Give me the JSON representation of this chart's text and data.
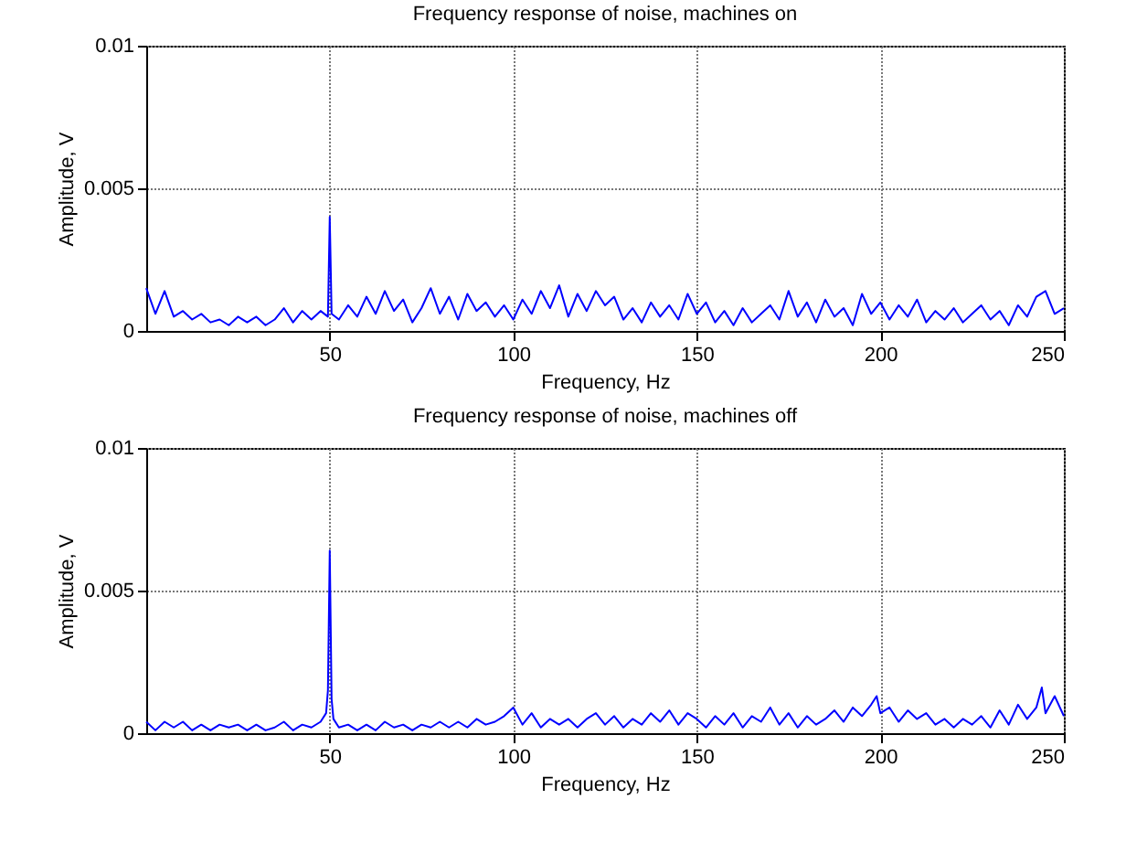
{
  "chart_data": [
    {
      "type": "line",
      "title": "Frequency response of noise, machines on",
      "xlabel": "Frequency, Hz",
      "ylabel": "Amplitude, V",
      "xlim": [
        0,
        250
      ],
      "ylim": [
        0,
        0.01
      ],
      "xticks": [
        50,
        100,
        150,
        200,
        250
      ],
      "yticks": [
        0,
        0.005,
        0.01
      ],
      "grid": true,
      "x": [
        0,
        2.5,
        5,
        7.5,
        10,
        12.5,
        15,
        17.5,
        20,
        22.5,
        25,
        27.5,
        30,
        32.5,
        35,
        37.5,
        40,
        42.5,
        45,
        47.5,
        49.5,
        50,
        50.5,
        52.5,
        55,
        57.5,
        60,
        62.5,
        65,
        67.5,
        70,
        72.5,
        75,
        77.5,
        80,
        82.5,
        85,
        87.5,
        90,
        92.5,
        95,
        97.5,
        100,
        102.5,
        105,
        107.5,
        110,
        112.5,
        115,
        117.5,
        120,
        122.5,
        125,
        127.5,
        130,
        132.5,
        135,
        137.5,
        140,
        142.5,
        145,
        147.5,
        150,
        152.5,
        155,
        157.5,
        160,
        162.5,
        165,
        167.5,
        170,
        172.5,
        175,
        177.5,
        180,
        182.5,
        185,
        187.5,
        190,
        192.5,
        195,
        197.5,
        200,
        202.5,
        205,
        207.5,
        210,
        212.5,
        215,
        217.5,
        220,
        222.5,
        225,
        227.5,
        230,
        232.5,
        235,
        237.5,
        240,
        242.5,
        245,
        247.5,
        250
      ],
      "series": [
        {
          "color": "#0000ff",
          "values": [
            0.0015,
            0.0006,
            0.0014,
            0.0005,
            0.0007,
            0.0004,
            0.0006,
            0.0003,
            0.0004,
            0.0002,
            0.0005,
            0.0003,
            0.0005,
            0.0002,
            0.0004,
            0.0008,
            0.0003,
            0.0007,
            0.0004,
            0.0007,
            0.0005,
            0.004,
            0.0006,
            0.0004,
            0.0009,
            0.0005,
            0.0012,
            0.0006,
            0.0014,
            0.0007,
            0.0011,
            0.0003,
            0.0008,
            0.0015,
            0.0006,
            0.0012,
            0.0004,
            0.0013,
            0.0007,
            0.001,
            0.0005,
            0.0009,
            0.0004,
            0.0011,
            0.0006,
            0.0014,
            0.0008,
            0.0016,
            0.0005,
            0.0013,
            0.0007,
            0.0014,
            0.0009,
            0.0012,
            0.0004,
            0.0008,
            0.0003,
            0.001,
            0.0005,
            0.0009,
            0.0004,
            0.0013,
            0.0006,
            0.001,
            0.0003,
            0.0007,
            0.0002,
            0.0008,
            0.0003,
            0.0006,
            0.0009,
            0.0004,
            0.0014,
            0.0005,
            0.001,
            0.0003,
            0.0011,
            0.0005,
            0.0008,
            0.0002,
            0.0013,
            0.0006,
            0.001,
            0.0004,
            0.0009,
            0.0005,
            0.0011,
            0.0003,
            0.0007,
            0.0004,
            0.0008,
            0.0003,
            0.0006,
            0.0009,
            0.0004,
            0.0007,
            0.0002,
            0.0009,
            0.0005,
            0.0012,
            0.0014,
            0.0006,
            0.0008
          ]
        }
      ]
    },
    {
      "type": "line",
      "title": "Frequency response of noise, machines off",
      "xlabel": "Frequency, Hz",
      "ylabel": "Amplitude, V",
      "xlim": [
        0,
        250
      ],
      "ylim": [
        0,
        0.01
      ],
      "xticks": [
        50,
        100,
        150,
        200,
        250
      ],
      "yticks": [
        0,
        0.005,
        0.01
      ],
      "grid": true,
      "x": [
        0,
        2.5,
        5,
        7.5,
        10,
        12.5,
        15,
        17.5,
        20,
        22.5,
        25,
        27.5,
        30,
        32.5,
        35,
        37.5,
        40,
        42.5,
        45,
        47.5,
        49,
        49.5,
        50,
        50.5,
        51,
        52.5,
        55,
        57.5,
        60,
        62.5,
        65,
        67.5,
        70,
        72.5,
        75,
        77.5,
        80,
        82.5,
        85,
        87.5,
        90,
        92.5,
        95,
        97.5,
        100,
        102.5,
        105,
        107.5,
        110,
        112.5,
        115,
        117.5,
        120,
        122.5,
        125,
        127.5,
        130,
        132.5,
        135,
        137.5,
        140,
        142.5,
        145,
        147.5,
        150,
        152.5,
        155,
        157.5,
        160,
        162.5,
        165,
        167.5,
        170,
        172.5,
        175,
        177.5,
        180,
        182.5,
        185,
        187.5,
        190,
        192.5,
        195,
        197.5,
        199,
        200,
        202.5,
        205,
        207.5,
        210,
        212.5,
        215,
        217.5,
        220,
        222.5,
        225,
        227.5,
        230,
        232.5,
        235,
        237.5,
        240,
        242.5,
        244,
        245,
        247.5,
        250
      ],
      "series": [
        {
          "color": "#0000ff",
          "values": [
            0.0004,
            0.0001,
            0.0004,
            0.0002,
            0.0004,
            0.0001,
            0.0003,
            0.0001,
            0.0003,
            0.0002,
            0.0003,
            0.0001,
            0.0003,
            0.0001,
            0.0002,
            0.0004,
            0.0001,
            0.0003,
            0.0002,
            0.0004,
            0.0007,
            0.0015,
            0.0064,
            0.0012,
            0.0005,
            0.0002,
            0.0003,
            0.0001,
            0.0003,
            0.0001,
            0.0004,
            0.0002,
            0.0003,
            0.0001,
            0.0003,
            0.0002,
            0.0004,
            0.0002,
            0.0004,
            0.0002,
            0.0005,
            0.0003,
            0.0004,
            0.0006,
            0.0009,
            0.0003,
            0.0007,
            0.0002,
            0.0005,
            0.0003,
            0.0005,
            0.0002,
            0.0005,
            0.0007,
            0.0003,
            0.0006,
            0.0002,
            0.0005,
            0.0003,
            0.0007,
            0.0004,
            0.0008,
            0.0003,
            0.0007,
            0.0005,
            0.0002,
            0.0006,
            0.0003,
            0.0007,
            0.0002,
            0.0006,
            0.0004,
            0.0009,
            0.0003,
            0.0007,
            0.0002,
            0.0006,
            0.0003,
            0.0005,
            0.0008,
            0.0004,
            0.0009,
            0.0006,
            0.001,
            0.0013,
            0.0007,
            0.0009,
            0.0004,
            0.0008,
            0.0005,
            0.0007,
            0.0003,
            0.0005,
            0.0002,
            0.0005,
            0.0003,
            0.0006,
            0.0002,
            0.0008,
            0.0003,
            0.001,
            0.0005,
            0.0009,
            0.0016,
            0.0007,
            0.0013,
            0.0006
          ]
        }
      ]
    }
  ]
}
